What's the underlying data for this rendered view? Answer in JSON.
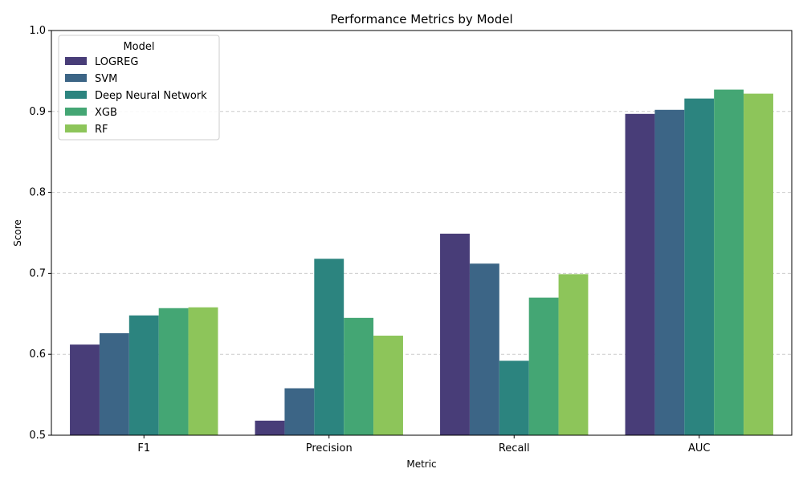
{
  "chart_data": {
    "type": "bar",
    "title": "Performance Metrics by Model",
    "xlabel": "Metric",
    "ylabel": "Score",
    "ylim": [
      0.5,
      1.0
    ],
    "yticks": [
      "0.5",
      "0.6",
      "0.7",
      "0.8",
      "0.9",
      "1.0"
    ],
    "grid": "y-dashed",
    "categories": [
      "F1",
      "Precision",
      "Recall",
      "AUC"
    ],
    "legend": {
      "title": "Model",
      "placement": "top-left"
    },
    "series": [
      {
        "name": "LOGREG",
        "color": "#483d78",
        "values": [
          0.612,
          0.518,
          0.749,
          0.897
        ]
      },
      {
        "name": "SVM",
        "color": "#3c6586",
        "values": [
          0.626,
          0.558,
          0.712,
          0.902
        ]
      },
      {
        "name": "Deep Neural Network",
        "color": "#2c847f",
        "values": [
          0.648,
          0.718,
          0.592,
          0.916
        ]
      },
      {
        "name": "XGB",
        "color": "#44a674",
        "values": [
          0.657,
          0.645,
          0.67,
          0.927
        ]
      },
      {
        "name": "RF",
        "color": "#8dc55a",
        "values": [
          0.658,
          0.623,
          0.699,
          0.922
        ]
      }
    ]
  }
}
